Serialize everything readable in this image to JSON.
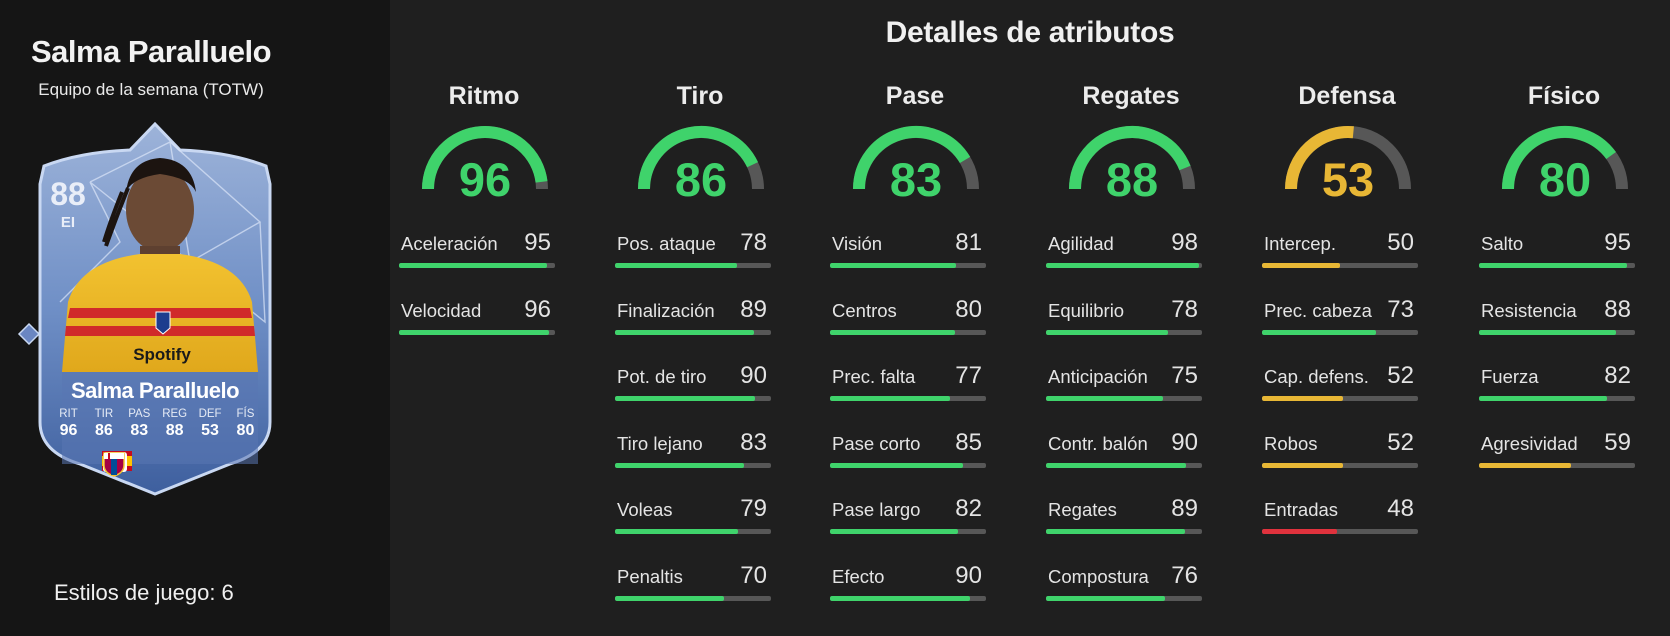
{
  "player": {
    "name": "Salma Paralluelo",
    "subtitle": "Equipo de la semana (TOTW)"
  },
  "card": {
    "rating": "88",
    "position": "EI",
    "name": "Salma Paralluelo",
    "stats": [
      {
        "label": "RIT",
        "value": "96"
      },
      {
        "label": "TIR",
        "value": "86"
      },
      {
        "label": "PAS",
        "value": "83"
      },
      {
        "label": "REG",
        "value": "88"
      },
      {
        "label": "DEF",
        "value": "53"
      },
      {
        "label": "FÍS",
        "value": "80"
      }
    ],
    "sponsor": "Spotify"
  },
  "playstyles_text": "Estilos de juego: 6",
  "section_title": "Detalles de atributos",
  "colors": {
    "green": "#3fd36b",
    "yellow": "#e8b735",
    "red": "#e0323d",
    "track": "#575757"
  },
  "categories": [
    {
      "name": "Ritmo",
      "value": 96,
      "attributes": [
        {
          "name": "Aceleración",
          "value": 95
        },
        {
          "name": "Velocidad",
          "value": 96
        }
      ]
    },
    {
      "name": "Tiro",
      "value": 86,
      "attributes": [
        {
          "name": "Pos. ataque",
          "value": 78
        },
        {
          "name": "Finalización",
          "value": 89
        },
        {
          "name": "Pot. de tiro",
          "value": 90
        },
        {
          "name": "Tiro lejano",
          "value": 83
        },
        {
          "name": "Voleas",
          "value": 79
        },
        {
          "name": "Penaltis",
          "value": 70
        }
      ]
    },
    {
      "name": "Pase",
      "value": 83,
      "attributes": [
        {
          "name": "Visión",
          "value": 81
        },
        {
          "name": "Centros",
          "value": 80
        },
        {
          "name": "Prec. falta",
          "value": 77
        },
        {
          "name": "Pase corto",
          "value": 85
        },
        {
          "name": "Pase largo",
          "value": 82
        },
        {
          "name": "Efecto",
          "value": 90
        }
      ]
    },
    {
      "name": "Regates",
      "value": 88,
      "attributes": [
        {
          "name": "Agilidad",
          "value": 98
        },
        {
          "name": "Equilibrio",
          "value": 78
        },
        {
          "name": "Anticipación",
          "value": 75
        },
        {
          "name": "Contr. balón",
          "value": 90
        },
        {
          "name": "Regates",
          "value": 89
        },
        {
          "name": "Compostura",
          "value": 76
        }
      ]
    },
    {
      "name": "Defensa",
      "value": 53,
      "attributes": [
        {
          "name": "Intercep.",
          "value": 50
        },
        {
          "name": "Prec. cabeza",
          "value": 73
        },
        {
          "name": "Cap. defens.",
          "value": 52
        },
        {
          "name": "Robos",
          "value": 52
        },
        {
          "name": "Entradas",
          "value": 48
        }
      ]
    },
    {
      "name": "Físico",
      "value": 80,
      "attributes": [
        {
          "name": "Salto",
          "value": 95
        },
        {
          "name": "Resistencia",
          "value": 88
        },
        {
          "name": "Fuerza",
          "value": 82
        },
        {
          "name": "Agresividad",
          "value": 59
        }
      ]
    }
  ]
}
